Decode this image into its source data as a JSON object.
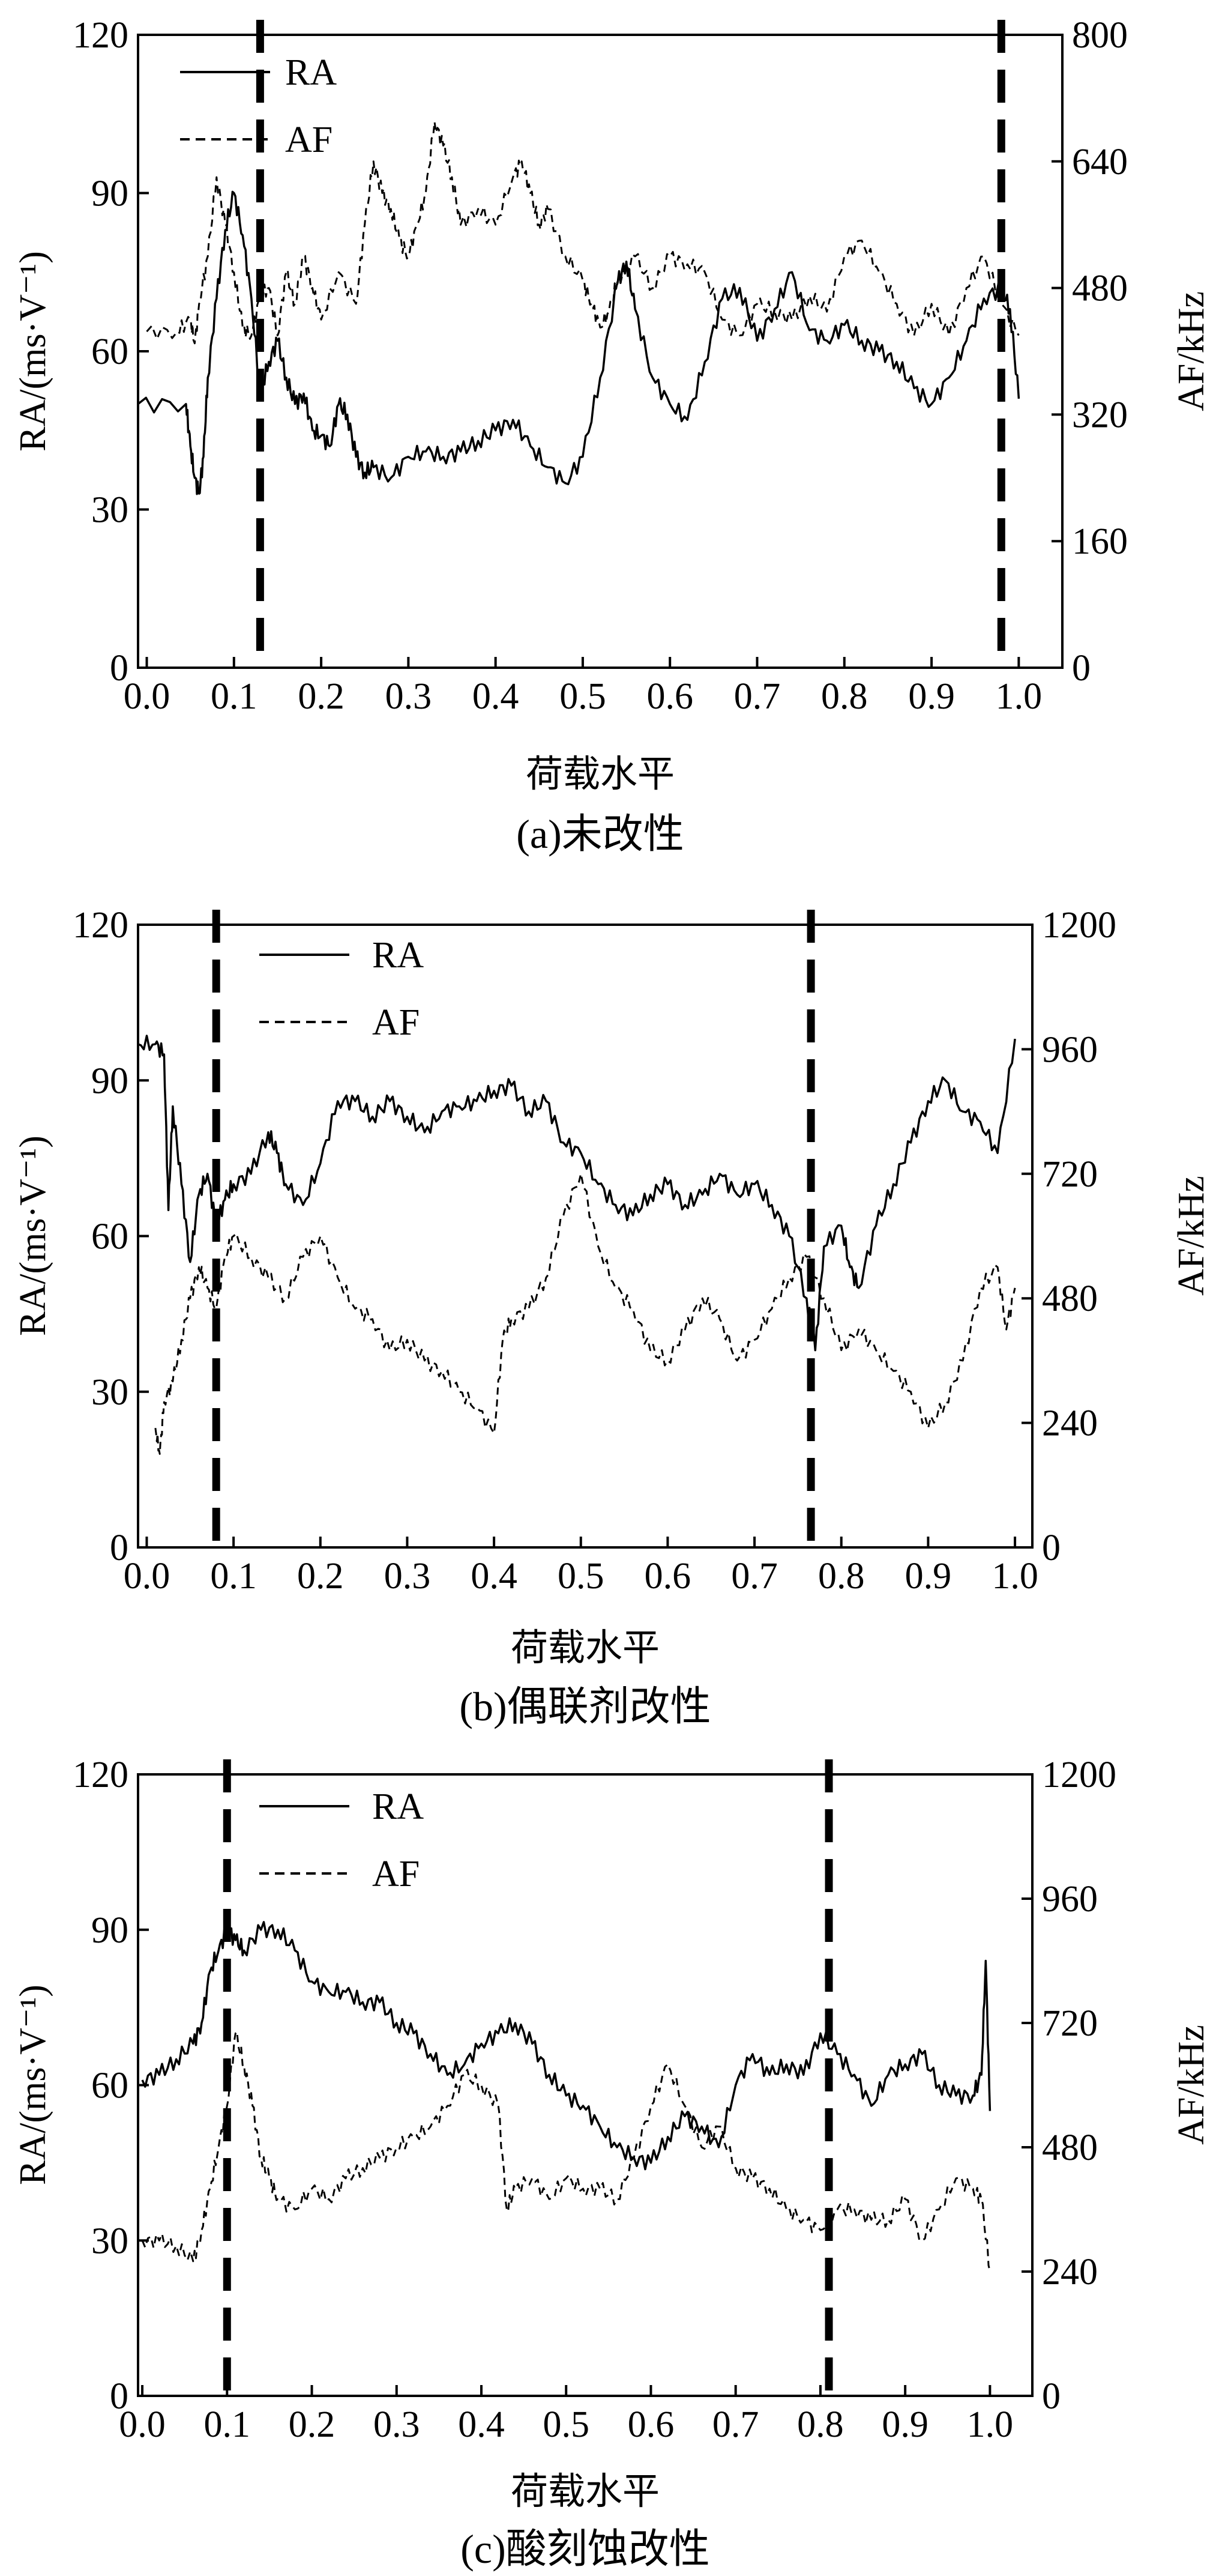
{
  "figure": {
    "charts": [
      {
        "type": "line",
        "panel": "a",
        "caption": "(a)未改性",
        "xlabel": "荷载水平",
        "ylabel": "RA/(ms·V⁻¹)",
        "y2label": "AF/kHz",
        "xlim": [
          -0.01,
          1.05
        ],
        "ylim": [
          0,
          120
        ],
        "y2lim": [
          0,
          800
        ],
        "xticks": [
          "0.0",
          "0.1",
          "0.2",
          "0.3",
          "0.4",
          "0.5",
          "0.6",
          "0.7",
          "0.8",
          "0.9",
          "1.0"
        ],
        "xtick_values": [
          0.0,
          0.1,
          0.2,
          0.3,
          0.4,
          0.5,
          0.6,
          0.7,
          0.8,
          0.9,
          1.0
        ],
        "yticks": [
          "0",
          "30",
          "60",
          "90",
          "120"
        ],
        "ytick_values": [
          0,
          30,
          60,
          90,
          120
        ],
        "y2ticks": [
          "0",
          "160",
          "320",
          "480",
          "640",
          "800"
        ],
        "y2tick_values": [
          0,
          160,
          320,
          480,
          640,
          800
        ],
        "legend": [
          {
            "label": "RA",
            "style": "solid"
          },
          {
            "label": "AF",
            "style": "dashed"
          }
        ],
        "vlines": [
          0.13,
          0.98
        ],
        "series": [
          {
            "name": "RA",
            "axis": "left",
            "style": "solid",
            "x": [
              -0.01,
              0.045,
              0.05,
              0.055,
              0.06,
              0.065,
              0.07,
              0.08,
              0.09,
              0.1,
              0.11,
              0.12,
              0.13,
              0.14,
              0.15,
              0.16,
              0.17,
              0.18,
              0.19,
              0.2,
              0.21,
              0.22,
              0.23,
              0.24,
              0.25,
              0.26,
              0.28,
              0.3,
              0.32,
              0.34,
              0.36,
              0.38,
              0.4,
              0.42,
              0.44,
              0.46,
              0.48,
              0.5,
              0.52,
              0.54,
              0.55,
              0.56,
              0.58,
              0.6,
              0.62,
              0.64,
              0.66,
              0.68,
              0.7,
              0.72,
              0.74,
              0.76,
              0.78,
              0.8,
              0.82,
              0.84,
              0.86,
              0.88,
              0.9,
              0.92,
              0.94,
              0.96,
              0.98,
              0.99,
              1.0
            ],
            "y": [
              50,
              50,
              42,
              36,
              33,
              40,
              55,
              70,
              83,
              90,
              82,
              70,
              52,
              58,
              62,
              55,
              50,
              52,
              45,
              44,
              42,
              50,
              48,
              40,
              37,
              38,
              36,
              40,
              41,
              40,
              41,
              43,
              45,
              47,
              42,
              38,
              35,
              40,
              55,
              73,
              77,
              68,
              55,
              50,
              47,
              58,
              70,
              72,
              62,
              68,
              75,
              64,
              62,
              65,
              62,
              60,
              58,
              53,
              50,
              55,
              62,
              70,
              72,
              68,
              51
            ]
          },
          {
            "name": "AF",
            "axis": "right",
            "style": "dashed",
            "x": [
              0.0,
              0.035,
              0.05,
              0.055,
              0.06,
              0.07,
              0.08,
              0.09,
              0.1,
              0.11,
              0.12,
              0.13,
              0.14,
              0.15,
              0.16,
              0.17,
              0.18,
              0.19,
              0.2,
              0.22,
              0.24,
              0.25,
              0.26,
              0.27,
              0.28,
              0.29,
              0.3,
              0.31,
              0.32,
              0.33,
              0.34,
              0.35,
              0.36,
              0.38,
              0.4,
              0.42,
              0.43,
              0.44,
              0.45,
              0.46,
              0.48,
              0.5,
              0.51,
              0.52,
              0.53,
              0.54,
              0.56,
              0.58,
              0.6,
              0.62,
              0.64,
              0.66,
              0.68,
              0.7,
              0.72,
              0.74,
              0.76,
              0.78,
              0.8,
              0.82,
              0.84,
              0.86,
              0.88,
              0.9,
              0.92,
              0.94,
              0.96,
              0.98,
              1.0
            ],
            "y": [
              425,
              425,
              440,
              410,
              460,
              520,
              620,
              560,
              500,
              430,
              420,
              470,
              480,
              420,
              500,
              460,
              520,
              480,
              440,
              500,
              460,
              560,
              640,
              600,
              580,
              540,
              520,
              560,
              600,
              690,
              660,
              620,
              560,
              580,
              560,
              620,
              640,
              600,
              560,
              580,
              520,
              490,
              460,
              430,
              450,
              490,
              520,
              480,
              520,
              510,
              500,
              440,
              420,
              460,
              450,
              440,
              470,
              450,
              520,
              540,
              500,
              460,
              420,
              460,
              420,
              480,
              520,
              460,
              420
            ]
          }
        ]
      },
      {
        "type": "line",
        "panel": "b",
        "caption": "(b)偶联剂改性",
        "xlabel": "荷载水平",
        "ylabel": "RA/(ms·V⁻¹)",
        "y2label": "AF/kHz",
        "xlim": [
          -0.01,
          1.02
        ],
        "ylim": [
          0,
          120
        ],
        "y2lim": [
          0,
          1200
        ],
        "xticks": [
          "0.0",
          "0.1",
          "0.2",
          "0.3",
          "0.4",
          "0.5",
          "0.6",
          "0.7",
          "0.8",
          "0.9",
          "1.0"
        ],
        "xtick_values": [
          0.0,
          0.1,
          0.2,
          0.3,
          0.4,
          0.5,
          0.6,
          0.7,
          0.8,
          0.9,
          1.0
        ],
        "yticks": [
          "0",
          "30",
          "60",
          "90",
          "120"
        ],
        "ytick_values": [
          0,
          30,
          60,
          90,
          120
        ],
        "y2ticks": [
          "0",
          "240",
          "480",
          "720",
          "960",
          "1200"
        ],
        "y2tick_values": [
          0,
          240,
          480,
          720,
          960,
          1200
        ],
        "legend": [
          {
            "label": "RA",
            "style": "solid"
          },
          {
            "label": "AF",
            "style": "dashed"
          }
        ],
        "vlines": [
          0.08,
          0.765
        ],
        "series": [
          {
            "name": "RA",
            "axis": "left",
            "style": "solid",
            "x": [
              -0.01,
              0.01,
              0.02,
              0.025,
              0.03,
              0.04,
              0.05,
              0.06,
              0.07,
              0.08,
              0.09,
              0.1,
              0.12,
              0.14,
              0.15,
              0.16,
              0.18,
              0.2,
              0.22,
              0.24,
              0.26,
              0.28,
              0.3,
              0.32,
              0.34,
              0.36,
              0.38,
              0.4,
              0.42,
              0.44,
              0.46,
              0.48,
              0.5,
              0.52,
              0.54,
              0.56,
              0.58,
              0.6,
              0.62,
              0.64,
              0.66,
              0.68,
              0.7,
              0.72,
              0.74,
              0.76,
              0.77,
              0.78,
              0.8,
              0.81,
              0.82,
              0.84,
              0.86,
              0.88,
              0.9,
              0.92,
              0.94,
              0.96,
              0.98,
              1.0
            ],
            "y": [
              97,
              97,
              95,
              65,
              85,
              70,
              55,
              68,
              72,
              62,
              67,
              70,
              72,
              80,
              76,
              70,
              66,
              74,
              86,
              86,
              83,
              86,
              83,
              80,
              84,
              85,
              86,
              88,
              89,
              84,
              86,
              78,
              76,
              70,
              66,
              64,
              68,
              70,
              66,
              68,
              72,
              68,
              70,
              66,
              60,
              48,
              38,
              58,
              62,
              54,
              50,
              62,
              70,
              78,
              86,
              90,
              84,
              82,
              76,
              98
            ]
          },
          {
            "name": "AF",
            "axis": "right",
            "style": "dashed",
            "x": [
              0.01,
              0.015,
              0.02,
              0.03,
              0.04,
              0.05,
              0.06,
              0.07,
              0.08,
              0.09,
              0.1,
              0.12,
              0.14,
              0.16,
              0.18,
              0.2,
              0.22,
              0.24,
              0.26,
              0.28,
              0.3,
              0.32,
              0.34,
              0.36,
              0.38,
              0.4,
              0.41,
              0.42,
              0.44,
              0.46,
              0.48,
              0.5,
              0.52,
              0.54,
              0.56,
              0.58,
              0.6,
              0.62,
              0.64,
              0.66,
              0.68,
              0.7,
              0.72,
              0.74,
              0.76,
              0.78,
              0.8,
              0.82,
              0.84,
              0.86,
              0.88,
              0.9,
              0.92,
              0.94,
              0.96,
              0.98,
              0.99,
              1.0
            ],
            "y": [
              230,
              180,
              280,
              320,
              400,
              480,
              540,
              500,
              460,
              560,
              600,
              560,
              520,
              480,
              560,
              600,
              520,
              460,
              440,
              380,
              400,
              360,
              340,
              300,
              270,
              220,
              400,
              440,
              460,
              520,
              640,
              720,
              580,
              500,
              460,
              380,
              360,
              420,
              480,
              440,
              360,
              400,
              460,
              520,
              560,
              480,
              380,
              420,
              380,
              340,
              300,
              230,
              280,
              360,
              500,
              540,
              420,
              500
            ]
          }
        ]
      },
      {
        "type": "line",
        "panel": "c",
        "caption": "(c)酸刻蚀改性",
        "xlabel": "荷载水平",
        "ylabel": "RA/(ms·V⁻¹)",
        "y2label": "AF/kHz",
        "xlim": [
          -0.005,
          1.05
        ],
        "ylim": [
          0,
          120
        ],
        "y2lim": [
          0,
          1200
        ],
        "xticks": [
          "0.0",
          "0.1",
          "0.2",
          "0.3",
          "0.4",
          "0.5",
          "0.6",
          "0.7",
          "0.8",
          "0.9",
          "1.0"
        ],
        "xtick_values": [
          0.0,
          0.1,
          0.2,
          0.3,
          0.4,
          0.5,
          0.6,
          0.7,
          0.8,
          0.9,
          1.0
        ],
        "yticks": [
          "0",
          "30",
          "60",
          "90",
          "120"
        ],
        "ytick_values": [
          0,
          30,
          60,
          90,
          120
        ],
        "y2ticks": [
          "0",
          "240",
          "480",
          "720",
          "960",
          "1200"
        ],
        "y2tick_values": [
          0,
          240,
          480,
          720,
          960,
          1200
        ],
        "legend": [
          {
            "label": "RA",
            "style": "solid"
          },
          {
            "label": "AF",
            "style": "dashed"
          }
        ],
        "vlines": [
          0.1,
          0.81
        ],
        "series": [
          {
            "name": "RA",
            "axis": "left",
            "style": "solid",
            "x": [
              0.0,
              0.02,
              0.04,
              0.06,
              0.07,
              0.08,
              0.09,
              0.1,
              0.11,
              0.12,
              0.14,
              0.16,
              0.18,
              0.2,
              0.22,
              0.24,
              0.26,
              0.28,
              0.3,
              0.32,
              0.34,
              0.36,
              0.38,
              0.4,
              0.42,
              0.44,
              0.46,
              0.48,
              0.5,
              0.52,
              0.54,
              0.56,
              0.58,
              0.6,
              0.62,
              0.64,
              0.66,
              0.68,
              0.7,
              0.72,
              0.74,
              0.76,
              0.78,
              0.8,
              0.82,
              0.84,
              0.86,
              0.88,
              0.9,
              0.92,
              0.94,
              0.96,
              0.98,
              0.99,
              0.995,
              1.0
            ],
            "y": [
              61,
              62,
              65,
              68,
              72,
              82,
              86,
              90,
              88,
              86,
              90,
              90,
              86,
              80,
              78,
              78,
              76,
              76,
              72,
              70,
              66,
              62,
              64,
              68,
              70,
              72,
              68,
              62,
              58,
              56,
              52,
              48,
              46,
              45,
              50,
              54,
              52,
              48,
              60,
              66,
              62,
              64,
              62,
              70,
              66,
              62,
              56,
              62,
              64,
              66,
              60,
              58,
              58,
              62,
              84,
              55
            ]
          },
          {
            "name": "AF",
            "axis": "right",
            "style": "dashed",
            "x": [
              0.0,
              0.02,
              0.04,
              0.06,
              0.07,
              0.08,
              0.09,
              0.1,
              0.11,
              0.12,
              0.13,
              0.14,
              0.15,
              0.16,
              0.18,
              0.2,
              0.22,
              0.24,
              0.26,
              0.28,
              0.3,
              0.32,
              0.34,
              0.36,
              0.38,
              0.4,
              0.42,
              0.43,
              0.44,
              0.46,
              0.48,
              0.5,
              0.52,
              0.54,
              0.56,
              0.58,
              0.6,
              0.62,
              0.64,
              0.66,
              0.68,
              0.7,
              0.72,
              0.74,
              0.76,
              0.78,
              0.8,
              0.82,
              0.84,
              0.86,
              0.88,
              0.9,
              0.92,
              0.94,
              0.96,
              0.98,
              0.99,
              1.0
            ],
            "y": [
              300,
              300,
              290,
              260,
              320,
              400,
              480,
              560,
              700,
              640,
              560,
              460,
              420,
              380,
              360,
              400,
              380,
              420,
              440,
              460,
              480,
              500,
              520,
              560,
              620,
              600,
              560,
              360,
              400,
              420,
              380,
              420,
              400,
              400,
              380,
              460,
              560,
              640,
              560,
              480,
              520,
              440,
              420,
              400,
              360,
              340,
              320,
              360,
              360,
              340,
              340,
              380,
              300,
              360,
              420,
              400,
              380,
              240
            ]
          }
        ]
      }
    ]
  }
}
